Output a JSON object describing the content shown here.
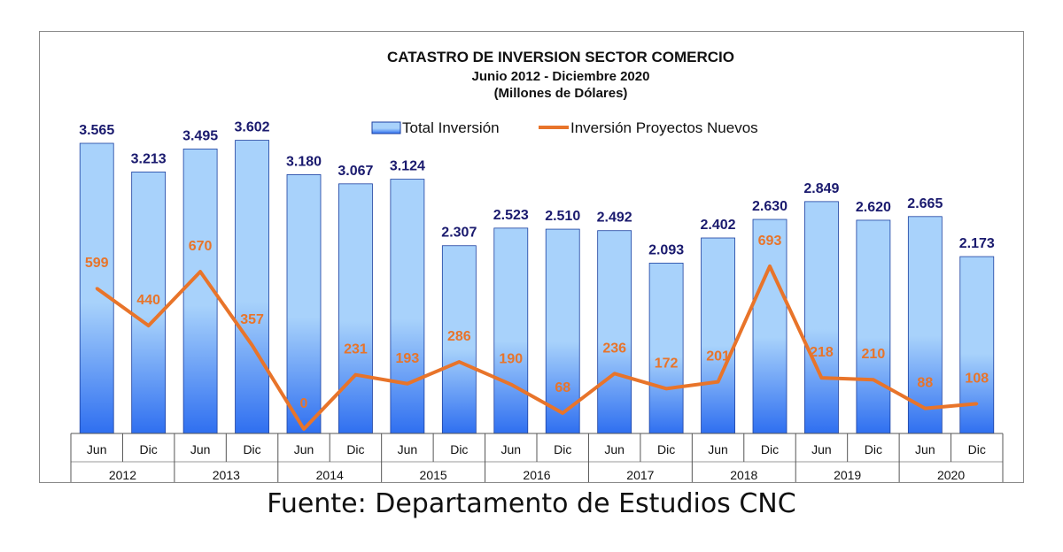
{
  "chart_data": {
    "type": "bar",
    "title": "CATASTRO DE INVERSION SECTOR COMERCIO",
    "subtitle": "Junio 2012 - Diciembre 2020",
    "unit_label": "(Millones de Dólares)",
    "legend_position": "top-center",
    "categories": [
      "Jun",
      "Dic",
      "Jun",
      "Dic",
      "Jun",
      "Dic",
      "Jun",
      "Dic",
      "Jun",
      "Dic",
      "Jun",
      "Dic",
      "Jun",
      "Dic",
      "Jun",
      "Dic",
      "Jun",
      "Dic"
    ],
    "years": [
      "2012",
      "2013",
      "2014",
      "2015",
      "2016",
      "2017",
      "2018",
      "2019",
      "2020"
    ],
    "series": [
      {
        "name": "Total Inversión",
        "type": "bar",
        "values": [
          3565,
          3213,
          3495,
          3602,
          3180,
          3067,
          3124,
          2307,
          2523,
          2510,
          2492,
          2093,
          2402,
          2630,
          2849,
          2620,
          2665,
          2173
        ],
        "labels": [
          "3.565",
          "3.213",
          "3.495",
          "3.602",
          "3.180",
          "3.067",
          "3.124",
          "2.307",
          "2.523",
          "2.510",
          "2.492",
          "2.093",
          "2.402",
          "2.630",
          "2.849",
          "2.620",
          "2.665",
          "2.173"
        ]
      },
      {
        "name": "Inversión Proyectos Nuevos",
        "type": "line",
        "values": [
          599,
          440,
          670,
          357,
          0,
          231,
          193,
          286,
          190,
          68,
          236,
          172,
          201,
          693,
          218,
          210,
          88,
          108
        ],
        "labels": [
          "599",
          "440",
          "670",
          "357",
          "0",
          "231",
          "193",
          "286",
          "190",
          "68",
          "236",
          "172",
          "201",
          "693",
          "218",
          "210",
          "88",
          "108"
        ]
      }
    ],
    "ylim": [
      0,
      3700
    ],
    "grid": false
  },
  "colors": {
    "bar_top": "#a8d2fb",
    "bar_bottom": "#2f6ff0",
    "bar_stroke": "#1a3fa0",
    "line": "#e8742a",
    "bar_label": "#1a1a6e"
  },
  "source": "Fuente: Departamento de Estudios CNC"
}
